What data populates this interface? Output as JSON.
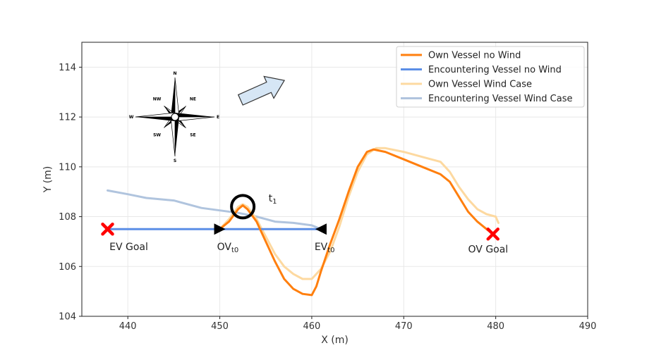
{
  "chart_data": {
    "type": "line",
    "xlabel": "X (m)",
    "ylabel": "Y (m)",
    "xlim": [
      435,
      490
    ],
    "ylim": [
      104,
      115
    ],
    "xticks": [
      440,
      450,
      460,
      470,
      480,
      490
    ],
    "yticks": [
      104,
      106,
      108,
      110,
      112,
      114
    ],
    "grid": true,
    "legend_position": "top-right",
    "series": [
      {
        "name": "Own Vessel no Wind",
        "color": "#ff7f0e",
        "x": [
          450,
          451,
          452,
          452.5,
          453,
          454,
          455,
          456,
          457,
          458,
          459,
          460,
          460.5,
          461,
          462,
          463,
          464,
          465,
          466,
          466.7,
          468,
          470,
          472,
          474,
          475,
          476,
          477,
          478,
          479,
          479.7
        ],
        "y": [
          107.5,
          107.8,
          108.3,
          108.45,
          108.3,
          107.8,
          107.0,
          106.2,
          105.5,
          105.1,
          104.9,
          104.85,
          105.2,
          105.8,
          106.9,
          107.9,
          109.0,
          110.0,
          110.6,
          110.7,
          110.6,
          110.3,
          110.0,
          109.7,
          109.4,
          108.8,
          108.2,
          107.8,
          107.5,
          107.3
        ]
      },
      {
        "name": "Encountering Vessel no Wind",
        "color": "#5b8ee6",
        "x": [
          437.8,
          440,
          445,
          450,
          455,
          461
        ],
        "y": [
          107.5,
          107.5,
          107.5,
          107.5,
          107.5,
          107.5
        ]
      },
      {
        "name": "Own Vessel Wind Case",
        "color": "#fdd9a0",
        "x": [
          450,
          451,
          452,
          452.5,
          453,
          454,
          455,
          456,
          457,
          458,
          459,
          460,
          461,
          462,
          463,
          464,
          465,
          466,
          467,
          468,
          470,
          472,
          474,
          475,
          476,
          477,
          478,
          479,
          480,
          480.3
        ],
        "y": [
          107.5,
          107.9,
          108.4,
          108.5,
          108.4,
          107.9,
          107.2,
          106.5,
          106.0,
          105.7,
          105.5,
          105.5,
          105.9,
          106.6,
          107.6,
          108.8,
          109.8,
          110.5,
          110.75,
          110.75,
          110.6,
          110.4,
          110.2,
          109.8,
          109.2,
          108.7,
          108.3,
          108.1,
          108.0,
          107.75
        ]
      },
      {
        "name": "Encountering Vessel Wind Case",
        "color": "#b0c4de",
        "x": [
          437.8,
          440,
          442,
          445,
          448,
          450,
          452,
          454,
          456,
          458,
          460,
          461
        ],
        "y": [
          109.05,
          108.9,
          108.75,
          108.65,
          108.35,
          108.25,
          108.15,
          108.0,
          107.8,
          107.75,
          107.65,
          107.5
        ]
      }
    ],
    "markers": [
      {
        "type": "goal-x",
        "x": 437.8,
        "y": 107.5,
        "color": "#ff0000"
      },
      {
        "type": "goal-x",
        "x": 479.7,
        "y": 107.3,
        "color": "#ff0000"
      },
      {
        "type": "triangle-right",
        "x": 450,
        "y": 107.5,
        "color": "#000000"
      },
      {
        "type": "triangle-left",
        "x": 461,
        "y": 107.5,
        "color": "#000000"
      },
      {
        "type": "circle",
        "x": 452.5,
        "y": 108.4,
        "color": "#000000"
      }
    ],
    "annotations": [
      {
        "text": "EV Goal",
        "x": 438,
        "y": 106.8
      },
      {
        "text": "OVt0",
        "x": 449.7,
        "y": 106.8
      },
      {
        "text": "EVt0",
        "x": 460.3,
        "y": 106.8
      },
      {
        "text": "OV Goal",
        "x": 477,
        "y": 106.7
      },
      {
        "text": "t1",
        "x": 455.3,
        "y": 108.75
      }
    ],
    "wind_arrow_icon": "right-up-arrow-icon",
    "compass_icon": "compass-rose-icon",
    "compass_labels": [
      "N",
      "NE",
      "E",
      "SE",
      "S",
      "SW",
      "W",
      "NW"
    ]
  }
}
